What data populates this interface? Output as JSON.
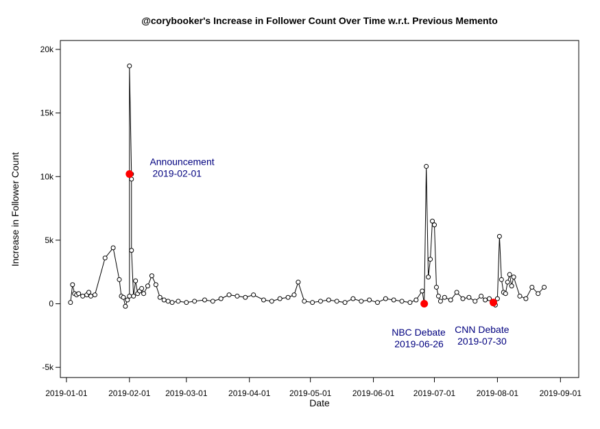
{
  "chart_data": {
    "type": "line",
    "title": "@corybooker's Increase in Follower Count Over Time w.r.t. Previous Memento",
    "xlabel": "Date",
    "ylabel": "Increase in Follower Count",
    "x_ticks": [
      "2019-01-01",
      "2019-02-01",
      "2019-03-01",
      "2019-04-01",
      "2019-05-01",
      "2019-06-01",
      "2019-07-01",
      "2019-08-01",
      "2019-09-01"
    ],
    "y_ticks": [
      "-5k",
      "0",
      "5k",
      "10k",
      "15k",
      "20k"
    ],
    "xlim": [
      "2018-12-29",
      "2019-09-10"
    ],
    "ylim": [
      -5800,
      20700
    ],
    "grid": false,
    "legend": "none",
    "series": [
      {
        "line_color": "#000000",
        "x": [
          "2019-01-03",
          "2019-01-04",
          "2019-01-05",
          "2019-01-06",
          "2019-01-07",
          "2019-01-09",
          "2019-01-11",
          "2019-01-12",
          "2019-01-13",
          "2019-01-15",
          "2019-01-20",
          "2019-01-24",
          "2019-01-27",
          "2019-01-28",
          "2019-01-29",
          "2019-01-30",
          "2019-01-31",
          "2019-02-01",
          "2019-02-01",
          "2019-02-02",
          "2019-02-02",
          "2019-02-02",
          "2019-02-03",
          "2019-02-04",
          "2019-02-05",
          "2019-02-06",
          "2019-02-07",
          "2019-02-08",
          "2019-02-10",
          "2019-02-12",
          "2019-02-14",
          "2019-02-16",
          "2019-02-18",
          "2019-02-20",
          "2019-02-22",
          "2019-02-25",
          "2019-03-01",
          "2019-03-05",
          "2019-03-10",
          "2019-03-14",
          "2019-03-18",
          "2019-03-22",
          "2019-03-26",
          "2019-03-30",
          "2019-04-03",
          "2019-04-08",
          "2019-04-12",
          "2019-04-16",
          "2019-04-20",
          "2019-04-23",
          "2019-04-25",
          "2019-04-28",
          "2019-05-02",
          "2019-05-06",
          "2019-05-10",
          "2019-05-14",
          "2019-05-18",
          "2019-05-22",
          "2019-05-26",
          "2019-05-30",
          "2019-06-03",
          "2019-06-07",
          "2019-06-11",
          "2019-06-15",
          "2019-06-19",
          "2019-06-22",
          "2019-06-25",
          "2019-06-26",
          "2019-06-27",
          "2019-06-28",
          "2019-06-29",
          "2019-06-30",
          "2019-07-01",
          "2019-07-02",
          "2019-07-03",
          "2019-07-04",
          "2019-07-06",
          "2019-07-09",
          "2019-07-12",
          "2019-07-15",
          "2019-07-18",
          "2019-07-21",
          "2019-07-24",
          "2019-07-26",
          "2019-07-28",
          "2019-07-30",
          "2019-07-31",
          "2019-08-01",
          "2019-08-02",
          "2019-08-03",
          "2019-08-04",
          "2019-08-05",
          "2019-08-06",
          "2019-08-07",
          "2019-08-08",
          "2019-08-09",
          "2019-08-12",
          "2019-08-15",
          "2019-08-18",
          "2019-08-21",
          "2019-08-24"
        ],
        "y": [
          100,
          1500,
          800,
          700,
          800,
          600,
          700,
          900,
          600,
          700,
          3600,
          4400,
          1900,
          600,
          500,
          -200,
          300,
          600,
          18700,
          10200,
          9800,
          4200,
          600,
          1800,
          800,
          1000,
          1200,
          800,
          1400,
          2200,
          1500,
          500,
          300,
          200,
          100,
          200,
          100,
          200,
          300,
          200,
          400,
          700,
          600,
          500,
          700,
          300,
          200,
          400,
          500,
          700,
          1700,
          200,
          100,
          200,
          300,
          200,
          100,
          400,
          200,
          300,
          100,
          400,
          300,
          200,
          100,
          300,
          1000,
          0,
          10800,
          2100,
          3500,
          6500,
          6200,
          1300,
          600,
          200,
          500,
          300,
          900,
          400,
          500,
          200,
          600,
          300,
          400,
          100,
          -100,
          400,
          5300,
          1900,
          900,
          800,
          1700,
          2300,
          1400,
          2100,
          600,
          400,
          1300,
          800,
          1300
        ]
      }
    ],
    "highlight_points": [
      {
        "x": "2019-02-01",
        "y": 10200,
        "color": "#ff0000"
      },
      {
        "x": "2019-06-26",
        "y": 0,
        "color": "#ff0000"
      },
      {
        "x": "2019-07-30",
        "y": 100,
        "color": "#ff0000"
      }
    ],
    "annotations": [
      {
        "line1": "Announcement",
        "line2": "2019-02-01",
        "x": "2019-02-11",
        "y": 10900
      },
      {
        "line1": "NBC Debate",
        "line2": "2019-06-26",
        "x": "2019-06-10",
        "y": -2500
      },
      {
        "line1": "CNN Debate",
        "line2": "2019-07-30",
        "x": "2019-07-11",
        "y": -2300
      }
    ]
  }
}
